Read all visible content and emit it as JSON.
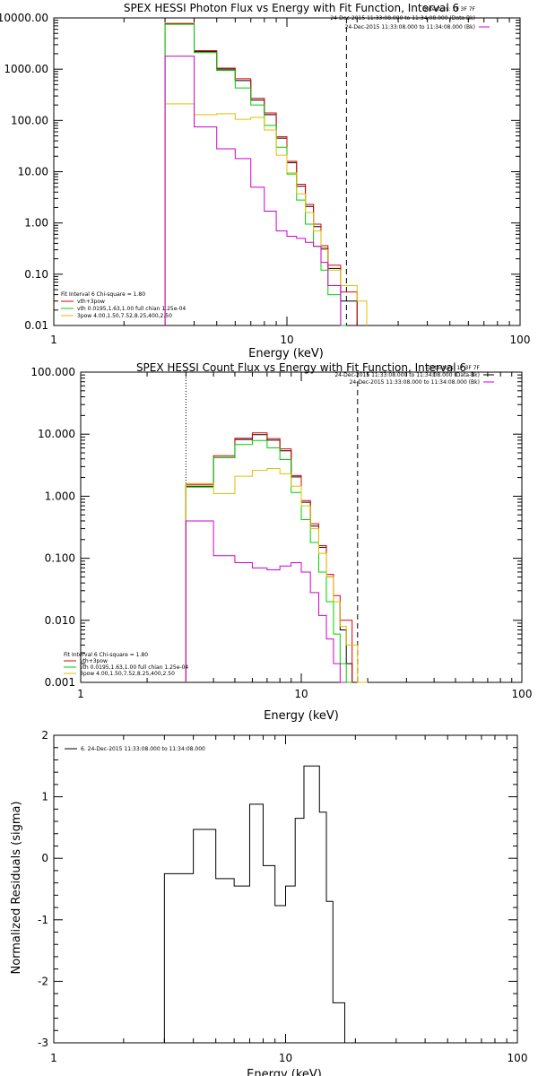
{
  "chart_data": [
    {
      "type": "line",
      "title": "SPEX HESSI Photon Flux vs Energy with Fit Function, Interval 6",
      "xlabel": "Energy (keV)",
      "ylabel": "",
      "xscale": "log",
      "yscale": "log",
      "xlim": [
        1,
        100
      ],
      "ylim": [
        0.01,
        10000
      ],
      "xticks": [
        {
          "v": 1,
          "label": "1"
        },
        {
          "v": 10,
          "label": "10"
        },
        {
          "v": 100,
          "label": "100"
        }
      ],
      "yticks": [
        {
          "v": 10000,
          "label": "10000.00"
        },
        {
          "v": 1000,
          "label": "1000.00"
        },
        {
          "v": 100,
          "label": "100.00"
        },
        {
          "v": 10,
          "label": "10.00"
        },
        {
          "v": 1,
          "label": "1.00"
        },
        {
          "v": 0.1,
          "label": "0.10"
        },
        {
          "v": 0.01,
          "label": "0.01"
        }
      ],
      "vlines": [
        {
          "x": 3.0,
          "style": "dotted",
          "color": "#000000"
        },
        {
          "x": 18.0,
          "style": "dashed",
          "color": "#000000"
        }
      ],
      "edges": [
        3.0,
        3.5,
        4.0,
        4.5,
        5.0,
        5.5,
        6.0,
        6.5,
        7.0,
        7.5,
        8.0,
        8.5,
        9.0,
        9.5,
        10.0,
        11.0,
        12.0,
        13.0,
        14.0,
        15.0,
        16.0,
        17.0,
        18.0,
        20.0,
        22.0
      ],
      "series": [
        {
          "name": "Data",
          "color": "#000000",
          "values": [
            7600,
            7600,
            2200,
            2200,
            1000,
            1000,
            600,
            600,
            250,
            250,
            130,
            130,
            45,
            45,
            15,
            5.2,
            2.1,
            0.85,
            0.32,
            0.13,
            0.13,
            0.03,
            0.03,
            null
          ]
        },
        {
          "name": "vth+3pow",
          "color": "#e00000",
          "values": [
            7800,
            7800,
            2300,
            2300,
            1050,
            1050,
            650,
            650,
            270,
            270,
            140,
            140,
            48,
            48,
            16,
            5.7,
            2.3,
            0.95,
            0.36,
            0.15,
            0.15,
            0.045,
            0.045,
            null
          ]
        },
        {
          "name": "vth 0.0195,1.63,1.00 full chian 1.25e-04",
          "color": "#00d000",
          "values": [
            7500,
            7500,
            2100,
            2100,
            950,
            950,
            430,
            430,
            200,
            200,
            80,
            80,
            30,
            30,
            9,
            2.8,
            0.95,
            0.35,
            0.12,
            0.04,
            0.04,
            0.01,
            null,
            null
          ]
        },
        {
          "name": "3pow 4.00,1.50,7.52,8.25,400,2.50",
          "color": "#e0c000",
          "values": [
            210,
            210,
            130,
            130,
            135,
            135,
            105,
            105,
            115,
            115,
            65,
            65,
            21,
            21,
            9.5,
            3.7,
            1.6,
            0.7,
            0.3,
            0.12,
            0.12,
            0.06,
            0.06,
            0.03
          ]
        },
        {
          "name": "",
          "color": "#d000d0",
          "values": [
            1800,
            1800,
            75,
            75,
            28,
            28,
            18,
            18,
            5,
            5,
            1.7,
            1.7,
            0.7,
            0.7,
            0.55,
            0.5,
            0.42,
            0.35,
            0.17,
            0.06,
            0.06,
            null,
            null,
            null
          ]
        }
      ],
      "legend_entries": [
        {
          "label": "Fit Interval  6   Chi-square = 1.80",
          "color": "#000000",
          "line": false
        },
        {
          "label": "vth+3pow",
          "color": "#e00000",
          "line": true
        },
        {
          "label": "vth 0.0195,1.63,1.00  full chian 1.25e-04",
          "color": "#00d000",
          "line": true
        },
        {
          "label": "3pow 4.00,1.50,7.52,8.25,400,2.50",
          "color": "#e0c000",
          "line": true
        }
      ],
      "header_text": [
        {
          "label": "Detectors: 1F 3F 7F",
          "color": "#000000",
          "line": false
        },
        {
          "label": "24-Dec-2015 11:33:08.000 to 11:34:08.000 (Data-Bk)",
          "color": "#000000",
          "line": true
        },
        {
          "label": "24-Dec-2015 11:33:08.000 to 11:34:08.000 (Bk)",
          "color": "#d000d0",
          "line": true
        }
      ]
    },
    {
      "type": "line",
      "title": "SPEX HESSI Count Flux vs Energy with Fit Function, Interval 6",
      "xlabel": "Energy (keV)",
      "ylabel": "",
      "xscale": "log",
      "yscale": "log",
      "xlim": [
        1,
        100
      ],
      "ylim": [
        0.001,
        100
      ],
      "xticks": [
        {
          "v": 1,
          "label": "1"
        },
        {
          "v": 10,
          "label": "10"
        },
        {
          "v": 100,
          "label": "100"
        }
      ],
      "yticks": [
        {
          "v": 100,
          "label": "100.000"
        },
        {
          "v": 10,
          "label": "10.000"
        },
        {
          "v": 1,
          "label": "1.000"
        },
        {
          "v": 0.1,
          "label": "0.100"
        },
        {
          "v": 0.01,
          "label": "0.010"
        },
        {
          "v": 0.001,
          "label": "0.001"
        }
      ],
      "vlines": [
        {
          "x": 3.0,
          "style": "dotted",
          "color": "#000000"
        },
        {
          "x": 18.0,
          "style": "dashed",
          "color": "#000000"
        }
      ],
      "edges": [
        3.0,
        4.0,
        5.0,
        6.0,
        7.0,
        8.0,
        9.0,
        10.0,
        11.0,
        12.0,
        13.0,
        14.0,
        15.0,
        16.0,
        17.0,
        18.0,
        20.0,
        22.0
      ],
      "series": [
        {
          "name": "Data",
          "color": "#000000",
          "values": [
            1.45,
            4.2,
            8.2,
            9.8,
            8.0,
            5.4,
            2.05,
            0.8,
            0.33,
            0.15,
            0.05,
            0.02,
            0.007,
            0.002,
            null,
            null,
            null
          ]
        },
        {
          "name": "vth+3pow",
          "color": "#e00000",
          "values": [
            1.55,
            4.5,
            8.6,
            10.5,
            8.5,
            5.8,
            2.15,
            0.85,
            0.36,
            0.16,
            0.055,
            0.025,
            0.01,
            0.01,
            null,
            null,
            null
          ]
        },
        {
          "name": "vth",
          "color": "#00d000",
          "values": [
            1.4,
            4.2,
            6.8,
            7.9,
            6.0,
            3.9,
            1.15,
            0.42,
            0.18,
            0.06,
            0.02,
            0.006,
            0.002,
            0.001,
            null,
            null,
            null
          ]
        },
        {
          "name": "3pow",
          "color": "#e0c000",
          "values": [
            1.6,
            1.1,
            2.1,
            2.6,
            2.8,
            2.3,
            1.45,
            0.7,
            0.3,
            0.12,
            0.05,
            0.02,
            0.008,
            0.004,
            0.004,
            0.001,
            null
          ]
        },
        {
          "name": "",
          "color": "#d000d0",
          "values": [
            0.4,
            0.11,
            0.085,
            0.07,
            0.065,
            0.075,
            0.085,
            0.06,
            0.028,
            0.012,
            0.005,
            0.002,
            0.001,
            null,
            null,
            null,
            null
          ]
        }
      ],
      "legend_entries": [
        {
          "label": "Fit Interval  6   Chi-square = 1.80",
          "color": "#000000",
          "line": false
        },
        {
          "label": "vth+3pow",
          "color": "#e00000",
          "line": true
        },
        {
          "label": "vth 0.0195,1.63,1.00  full chian 1.25e-04",
          "color": "#00d000",
          "line": true
        },
        {
          "label": "3pow 4.00,1.50,7.52,8.25,400,2.50",
          "color": "#e0c000",
          "line": true
        }
      ],
      "header_text": [
        {
          "label": "Detectors: 1F 3F 7F",
          "color": "#000000",
          "line": false
        },
        {
          "label": "24-Dec-2015 11:33:08.000 to 11:34:08.000 (Data-Bk)",
          "color": "#000000",
          "line": true
        },
        {
          "label": "24-Dec-2015 11:33:08.000 to 11:34:08.000 (Bk)",
          "color": "#d000d0",
          "line": true
        }
      ]
    },
    {
      "type": "line",
      "title": "",
      "xlabel": "Energy (keV)",
      "ylabel": "Normalized Residuals (sigma)",
      "xscale": "log",
      "yscale": "linear",
      "xlim": [
        1,
        100
      ],
      "ylim": [
        -3,
        2
      ],
      "xticks": [
        {
          "v": 1,
          "label": "1"
        },
        {
          "v": 10,
          "label": "10"
        },
        {
          "v": 100,
          "label": "100"
        }
      ],
      "yticks": [
        {
          "v": 2,
          "label": "2"
        },
        {
          "v": 1,
          "label": "1"
        },
        {
          "v": 0,
          "label": "0"
        },
        {
          "v": -1,
          "label": "-1"
        },
        {
          "v": -2,
          "label": "-2"
        },
        {
          "v": -3,
          "label": "-3"
        }
      ],
      "vlines": [],
      "edges": [
        3.0,
        3.5,
        4.0,
        4.5,
        5.0,
        5.5,
        6.0,
        6.5,
        7.0,
        7.5,
        8.0,
        8.5,
        9.0,
        9.5,
        10.0,
        11.0,
        12.0,
        13.0,
        14.0,
        15.0,
        16.0,
        17.0,
        18.0
      ],
      "residual_start": -3,
      "series": [
        {
          "name": "6. 24-Dec-2015 11:33:08.000 to 11:34:08.000",
          "color": "#000000",
          "values": [
            -0.25,
            -0.25,
            0.47,
            0.47,
            -0.33,
            -0.33,
            -0.45,
            -0.45,
            0.88,
            0.88,
            -0.12,
            -0.12,
            -0.77,
            -0.77,
            -0.45,
            0.65,
            1.5,
            1.5,
            0.75,
            -0.7,
            -2.35,
            -2.35
          ]
        }
      ],
      "legend_entries": [
        {
          "label": "6. 24-Dec-2015 11:33:08.000 to 11:34:08.000",
          "color": "#000000",
          "line": true
        }
      ],
      "header_text": []
    }
  ]
}
